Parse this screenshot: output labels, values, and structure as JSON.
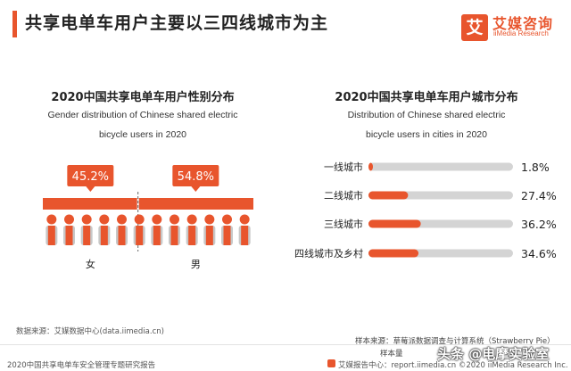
{
  "header": {
    "title": "共享电单车用户主要以三四线城市为主",
    "logo_mark": "艾",
    "logo_cn": "艾媒咨询",
    "logo_en": "iiMedia Research"
  },
  "chart_data": [
    {
      "type": "pictogram",
      "title": "2020中国共享电单车用户性别分布",
      "subtitle": "Gender distribution of Chinese shared electric bicycle users in 2020",
      "subtitle_line1": "Gender distribution of Chinese shared electric",
      "subtitle_line2": "bicycle users in 2020",
      "categories": [
        "女",
        "男"
      ],
      "values": [
        45.2,
        54.8
      ],
      "labels": [
        "45.2%",
        "54.8%"
      ],
      "unit": "%"
    },
    {
      "type": "bar",
      "orientation": "horizontal",
      "title": "2020中国共享电单车用户城市分布",
      "subtitle": "Distribution of Chinese shared  electric bicycle users in cities in 2020",
      "subtitle_line1": "Distribution of Chinese shared  electric",
      "subtitle_line2": "bicycle users in cities in 2020",
      "categories": [
        "一线城市",
        "二线城市",
        "三线城市",
        "四线城市及乡村"
      ],
      "values": [
        1.8,
        27.4,
        36.2,
        34.6
      ],
      "labels": [
        "1.8%",
        "27.4%",
        "36.2%",
        "34.6%"
      ],
      "unit": "%",
      "xlim": [
        0,
        100
      ]
    }
  ],
  "footer": {
    "data_source": "数据来源：艾媒数据中心(data.iimedia.cn)",
    "sample_source": "样本来源：草莓派数据调查与计算系统（Strawberry Pie）",
    "sample_size": "样本量",
    "report_name": "2020中国共享电单车安全管理专题研究报告",
    "report_center": "艾媒报告中心：report.iimedia.cn   ©2020  iiMedia Research  Inc.",
    "watermark": "头条 @电摩实验室"
  },
  "colors": {
    "accent": "#e8552d",
    "track": "#d4d4d4",
    "pictogram_gray": "#c8c8c8"
  }
}
